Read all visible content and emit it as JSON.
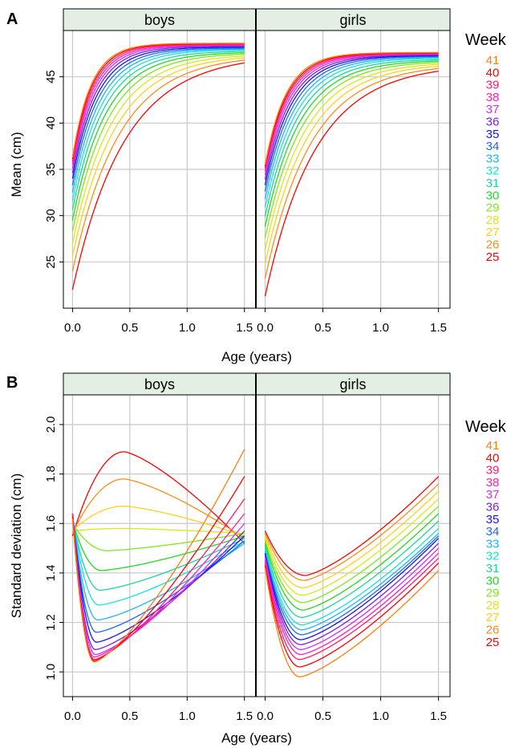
{
  "chart_data": [
    {
      "type": "line",
      "panel_label": "A",
      "xlabel": "Age (years)",
      "ylabel": "Mean (cm)",
      "facets": [
        "boys",
        "girls"
      ],
      "xlim": [
        -0.08,
        1.6
      ],
      "ylim": [
        20,
        50
      ],
      "xticks": [
        "0.0",
        "0.5",
        "1.0",
        "1.5"
      ],
      "yticks": [
        "25",
        "30",
        "35",
        "40",
        "45"
      ],
      "legend_title": "Week",
      "legend_entries": [
        "41",
        "40",
        "39",
        "38",
        "37",
        "36",
        "35",
        "34",
        "33",
        "32",
        "31",
        "30",
        "29",
        "28",
        "27",
        "26",
        "25"
      ],
      "series": [
        {
          "name": "25",
          "boys": {
            "y0": 22.0,
            "y_end": 46.5,
            "shape": 2.2
          },
          "girls": {
            "y0": 21.3,
            "y_end": 45.6,
            "shape": 2.3
          }
        },
        {
          "name": "26",
          "boys": {
            "y0": 24.0,
            "y_end": 46.8,
            "shape": 2.45
          },
          "girls": {
            "y0": 23.2,
            "y_end": 45.9,
            "shape": 2.5
          }
        },
        {
          "name": "27",
          "boys": {
            "y0": 25.6,
            "y_end": 47.05,
            "shape": 2.7
          },
          "girls": {
            "y0": 24.8,
            "y_end": 46.15,
            "shape": 2.7
          }
        },
        {
          "name": "28",
          "boys": {
            "y0": 27.0,
            "y_end": 47.25,
            "shape": 2.95
          },
          "girls": {
            "y0": 26.3,
            "y_end": 46.35,
            "shape": 2.9
          }
        },
        {
          "name": "29",
          "boys": {
            "y0": 28.3,
            "y_end": 47.45,
            "shape": 3.2
          },
          "girls": {
            "y0": 27.6,
            "y_end": 46.55,
            "shape": 3.1
          }
        },
        {
          "name": "30",
          "boys": {
            "y0": 29.5,
            "y_end": 47.6,
            "shape": 3.45
          },
          "girls": {
            "y0": 28.8,
            "y_end": 46.7,
            "shape": 3.3
          }
        },
        {
          "name": "31",
          "boys": {
            "y0": 30.6,
            "y_end": 47.75,
            "shape": 3.7
          },
          "girls": {
            "y0": 29.9,
            "y_end": 46.85,
            "shape": 3.5
          }
        },
        {
          "name": "32",
          "boys": {
            "y0": 31.6,
            "y_end": 47.9,
            "shape": 3.95
          },
          "girls": {
            "y0": 30.9,
            "y_end": 47.0,
            "shape": 3.7
          }
        },
        {
          "name": "33",
          "boys": {
            "y0": 32.5,
            "y_end": 48.0,
            "shape": 4.2
          },
          "girls": {
            "y0": 31.8,
            "y_end": 47.1,
            "shape": 3.9
          }
        },
        {
          "name": "34",
          "boys": {
            "y0": 33.3,
            "y_end": 48.1,
            "shape": 4.45
          },
          "girls": {
            "y0": 32.6,
            "y_end": 47.2,
            "shape": 4.1
          }
        },
        {
          "name": "35",
          "boys": {
            "y0": 34.0,
            "y_end": 48.2,
            "shape": 4.7
          },
          "girls": {
            "y0": 33.3,
            "y_end": 47.28,
            "shape": 4.3
          }
        },
        {
          "name": "36",
          "boys": {
            "y0": 34.6,
            "y_end": 48.3,
            "shape": 4.95
          },
          "girls": {
            "y0": 33.9,
            "y_end": 47.35,
            "shape": 4.5
          }
        },
        {
          "name": "37",
          "boys": {
            "y0": 35.1,
            "y_end": 48.38,
            "shape": 5.2
          },
          "girls": {
            "y0": 34.4,
            "y_end": 47.42,
            "shape": 4.7
          }
        },
        {
          "name": "38",
          "boys": {
            "y0": 35.5,
            "y_end": 48.45,
            "shape": 5.45
          },
          "girls": {
            "y0": 34.8,
            "y_end": 47.48,
            "shape": 4.9
          }
        },
        {
          "name": "39",
          "boys": {
            "y0": 35.8,
            "y_end": 48.52,
            "shape": 5.7
          },
          "girls": {
            "y0": 35.1,
            "y_end": 47.53,
            "shape": 5.1
          }
        },
        {
          "name": "40",
          "boys": {
            "y0": 36.1,
            "y_end": 48.58,
            "shape": 5.95
          },
          "girls": {
            "y0": 35.3,
            "y_end": 47.58,
            "shape": 5.3
          }
        },
        {
          "name": "41",
          "boys": {
            "y0": 36.3,
            "y_end": 48.62,
            "shape": 6.2
          },
          "girls": {
            "y0": 35.5,
            "y_end": 47.62,
            "shape": 5.5
          }
        }
      ]
    },
    {
      "type": "line",
      "panel_label": "B",
      "xlabel": "Age (years)",
      "ylabel": "Standard deviation (cm)",
      "facets": [
        "boys",
        "girls"
      ],
      "xlim": [
        -0.08,
        1.6
      ],
      "ylim": [
        0.9,
        2.12
      ],
      "xticks": [
        "0.0",
        "0.5",
        "1.0",
        "1.5"
      ],
      "yticks": [
        "1.0",
        "1.2",
        "1.4",
        "1.6",
        "1.8",
        "2.0"
      ],
      "legend_title": "Week",
      "legend_entries": [
        "41",
        "40",
        "39",
        "38",
        "37",
        "36",
        "35",
        "34",
        "33",
        "32",
        "31",
        "30",
        "29",
        "28",
        "27",
        "26",
        "25"
      ],
      "series": [
        {
          "name": "25",
          "boys": {
            "y0": 1.55,
            "y_ext": 1.89,
            "t_ext": 0.45,
            "y_end": 1.52
          },
          "girls": {
            "y0": 1.57,
            "y_ext": 1.39,
            "t_ext": 0.35,
            "y_end": 1.79
          }
        },
        {
          "name": "26",
          "boys": {
            "y0": 1.56,
            "y_ext": 1.78,
            "t_ext": 0.45,
            "y_end": 1.54
          },
          "girls": {
            "y0": 1.56,
            "y_ext": 1.37,
            "t_ext": 0.34,
            "y_end": 1.76
          }
        },
        {
          "name": "27",
          "boys": {
            "y0": 1.57,
            "y_ext": 1.67,
            "t_ext": 0.45,
            "y_end": 1.55
          },
          "girls": {
            "y0": 1.55,
            "y_ext": 1.34,
            "t_ext": 0.33,
            "y_end": 1.73
          }
        },
        {
          "name": "28",
          "boys": {
            "y0": 1.57,
            "y_ext": 1.58,
            "t_ext": 0.45,
            "y_end": 1.56
          },
          "girls": {
            "y0": 1.54,
            "y_ext": 1.31,
            "t_ext": 0.33,
            "y_end": 1.7
          }
        },
        {
          "name": "29",
          "boys": {
            "y0": 1.6,
            "y_ext": 1.49,
            "t_ext": 0.3,
            "y_end": 1.56
          },
          "girls": {
            "y0": 1.53,
            "y_ext": 1.28,
            "t_ext": 0.33,
            "y_end": 1.67
          }
        },
        {
          "name": "30",
          "boys": {
            "y0": 1.61,
            "y_ext": 1.41,
            "t_ext": 0.25,
            "y_end": 1.55
          },
          "girls": {
            "y0": 1.52,
            "y_ext": 1.25,
            "t_ext": 0.33,
            "y_end": 1.64
          }
        },
        {
          "name": "31",
          "boys": {
            "y0": 1.62,
            "y_ext": 1.33,
            "t_ext": 0.24,
            "y_end": 1.54
          },
          "girls": {
            "y0": 1.51,
            "y_ext": 1.22,
            "t_ext": 0.32,
            "y_end": 1.61
          }
        },
        {
          "name": "32",
          "boys": {
            "y0": 1.63,
            "y_ext": 1.27,
            "t_ext": 0.23,
            "y_end": 1.53
          },
          "girls": {
            "y0": 1.5,
            "y_ext": 1.19,
            "t_ext": 0.32,
            "y_end": 1.58
          }
        },
        {
          "name": "33",
          "boys": {
            "y0": 1.63,
            "y_ext": 1.21,
            "t_ext": 0.22,
            "y_end": 1.52
          },
          "girls": {
            "y0": 1.49,
            "y_ext": 1.17,
            "t_ext": 0.32,
            "y_end": 1.56
          }
        },
        {
          "name": "34",
          "boys": {
            "y0": 1.64,
            "y_ext": 1.16,
            "t_ext": 0.21,
            "y_end": 1.53
          },
          "girls": {
            "y0": 1.48,
            "y_ext": 1.15,
            "t_ext": 0.32,
            "y_end": 1.55
          }
        },
        {
          "name": "35",
          "boys": {
            "y0": 1.64,
            "y_ext": 1.12,
            "t_ext": 0.21,
            "y_end": 1.55
          },
          "girls": {
            "y0": 1.48,
            "y_ext": 1.13,
            "t_ext": 0.31,
            "y_end": 1.54
          }
        },
        {
          "name": "36",
          "boys": {
            "y0": 1.64,
            "y_ext": 1.09,
            "t_ext": 0.2,
            "y_end": 1.57
          },
          "girls": {
            "y0": 1.47,
            "y_ext": 1.11,
            "t_ext": 0.31,
            "y_end": 1.52
          }
        },
        {
          "name": "37",
          "boys": {
            "y0": 1.64,
            "y_ext": 1.07,
            "t_ext": 0.2,
            "y_end": 1.6
          },
          "girls": {
            "y0": 1.46,
            "y_ext": 1.09,
            "t_ext": 0.31,
            "y_end": 1.5
          }
        },
        {
          "name": "38",
          "boys": {
            "y0": 1.64,
            "y_ext": 1.06,
            "t_ext": 0.19,
            "y_end": 1.64
          },
          "girls": {
            "y0": 1.45,
            "y_ext": 1.07,
            "t_ext": 0.31,
            "y_end": 1.48
          }
        },
        {
          "name": "39",
          "boys": {
            "y0": 1.63,
            "y_ext": 1.05,
            "t_ext": 0.19,
            "y_end": 1.7
          },
          "girls": {
            "y0": 1.44,
            "y_ext": 1.05,
            "t_ext": 0.3,
            "y_end": 1.46
          }
        },
        {
          "name": "40",
          "boys": {
            "y0": 1.63,
            "y_ext": 1.045,
            "t_ext": 0.19,
            "y_end": 1.79
          },
          "girls": {
            "y0": 1.43,
            "y_ext": 1.02,
            "t_ext": 0.3,
            "y_end": 1.44
          }
        },
        {
          "name": "41",
          "boys": {
            "y0": 1.62,
            "y_ext": 1.04,
            "t_ext": 0.19,
            "y_end": 1.9
          },
          "girls": {
            "y0": 1.42,
            "y_ext": 0.98,
            "t_ext": 0.3,
            "y_end": 1.41
          }
        }
      ]
    }
  ],
  "colors": {
    "strip_bg": "#e2efe2",
    "grid": "#c8c8c8",
    "week_colors": {
      "41": "#ff7f0e",
      "40": "#ff0000",
      "39": "#ff1c6b",
      "38": "#ff1fbd",
      "37": "#d62cf2",
      "36": "#7a1fe6",
      "35": "#1414f0",
      "34": "#1f66f0",
      "33": "#19b7f0",
      "32": "#19e0e0",
      "31": "#19d99a",
      "30": "#22d922",
      "29": "#7ee81a",
      "28": "#dde61a",
      "27": "#ffd21a",
      "26": "#ff8c1a",
      "25": "#ff0000"
    }
  }
}
